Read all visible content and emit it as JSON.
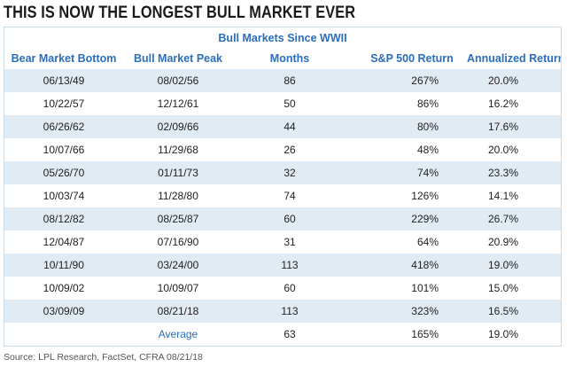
{
  "title": "THIS IS NOW THE LONGEST BULL MARKET EVER",
  "subtitle": "Bull Markets Since WWII",
  "columns": [
    "Bear Market Bottom",
    "Bull Market Peak",
    "Months",
    "S&P 500 Return",
    "Annualized Return"
  ],
  "rows": [
    [
      "06/13/49",
      "08/02/56",
      "86",
      "267%",
      "20.0%"
    ],
    [
      "10/22/57",
      "12/12/61",
      "50",
      "86%",
      "16.2%"
    ],
    [
      "06/26/62",
      "02/09/66",
      "44",
      "80%",
      "17.6%"
    ],
    [
      "10/07/66",
      "11/29/68",
      "26",
      "48%",
      "20.0%"
    ],
    [
      "05/26/70",
      "01/11/73",
      "32",
      "74%",
      "23.3%"
    ],
    [
      "10/03/74",
      "11/28/80",
      "74",
      "126%",
      "14.1%"
    ],
    [
      "08/12/82",
      "08/25/87",
      "60",
      "229%",
      "26.7%"
    ],
    [
      "12/04/87",
      "07/16/90",
      "31",
      "64%",
      "20.9%"
    ],
    [
      "10/11/90",
      "03/24/00",
      "113",
      "418%",
      "19.0%"
    ],
    [
      "10/09/02",
      "10/09/07",
      "60",
      "101%",
      "15.0%"
    ],
    [
      "03/09/09",
      "08/21/18",
      "113",
      "323%",
      "16.5%"
    ]
  ],
  "average": {
    "label": "Average",
    "months": "63",
    "sp_return": "165%",
    "annualized": "19.0%"
  },
  "source": "Source: LPL Research, FactSet, CFRA     08/21/18",
  "colors": {
    "accent": "#2a6ebd",
    "row_shade": "#e1ebf4",
    "border": "#c9dbe9"
  }
}
